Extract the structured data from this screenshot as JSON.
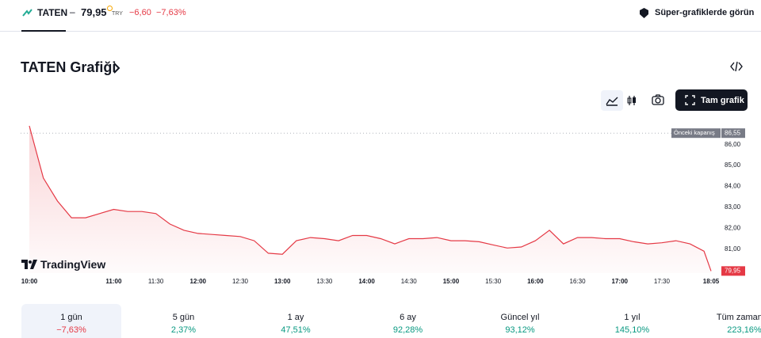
{
  "header": {
    "ticker": "TATEN",
    "price": "79,95",
    "currency": "TRY",
    "change": "−6,60",
    "change_pct": "−7,63%",
    "link": "Süper-grafiklerde görün"
  },
  "heading": "TATEN Grafiği",
  "button": "Tam grafik",
  "chart_data": {
    "type": "line",
    "watermark": "TradingView",
    "color": "#e53945",
    "x": [
      "10:00",
      "10:10",
      "10:20",
      "10:30",
      "10:40",
      "10:50",
      "11:00",
      "11:10",
      "11:20",
      "11:30",
      "11:40",
      "11:50",
      "12:00",
      "12:10",
      "12:20",
      "12:30",
      "12:40",
      "12:50",
      "13:00",
      "13:10",
      "13:20",
      "13:30",
      "13:40",
      "13:50",
      "14:00",
      "14:10",
      "14:20",
      "14:30",
      "14:40",
      "14:50",
      "15:00",
      "15:10",
      "15:20",
      "15:30",
      "15:40",
      "15:50",
      "16:00",
      "16:10",
      "16:20",
      "16:30",
      "16:40",
      "16:50",
      "17:00",
      "17:10",
      "17:20",
      "17:30",
      "17:40",
      "17:50",
      "18:00",
      "18:05"
    ],
    "values": [
      86.9,
      84.4,
      83.3,
      82.5,
      82.5,
      82.7,
      82.9,
      82.8,
      82.8,
      82.7,
      82.2,
      81.9,
      81.75,
      81.7,
      81.65,
      81.6,
      81.4,
      80.8,
      80.75,
      81.4,
      81.55,
      81.5,
      81.4,
      81.65,
      81.65,
      81.5,
      81.25,
      81.5,
      81.5,
      81.55,
      81.4,
      81.4,
      81.35,
      81.2,
      81.05,
      81.1,
      81.4,
      81.9,
      81.25,
      81.55,
      81.55,
      81.5,
      81.5,
      81.35,
      81.25,
      81.3,
      81.4,
      81.25,
      80.9,
      79.95
    ],
    "last_value_label": "79,95",
    "xticks": [
      "10:00",
      "11:00",
      "11:30",
      "12:00",
      "12:30",
      "13:00",
      "13:30",
      "14:00",
      "14:30",
      "15:00",
      "15:30",
      "16:00",
      "16:30",
      "17:00",
      "17:30",
      "18:05"
    ],
    "ylim": [
      79.85,
      87.05
    ],
    "yticks": [
      {
        "value": 81,
        "label": "81,00"
      },
      {
        "value": 82,
        "label": "82,00"
      },
      {
        "value": 83,
        "label": "83,00"
      },
      {
        "value": 84,
        "label": "84,00"
      },
      {
        "value": 85,
        "label": "85,00"
      },
      {
        "value": 86,
        "label": "86,00"
      }
    ],
    "prev_close": {
      "label": "Önceki kapanış",
      "value": 86.55,
      "value_label": "86,55"
    }
  },
  "periods": [
    {
      "label": "1 gün",
      "change": "−7,63%"
    },
    {
      "label": "5 gün",
      "change": "2,37%"
    },
    {
      "label": "1 ay",
      "change": "47,51%"
    },
    {
      "label": "6 ay",
      "change": "92,28%"
    },
    {
      "label": "Güncel yıl",
      "change": "93,12%"
    },
    {
      "label": "1 yıl",
      "change": "145,10%"
    },
    {
      "label": "Tüm zamanlar",
      "change": "223,16%"
    }
  ],
  "selected_period": 0
}
